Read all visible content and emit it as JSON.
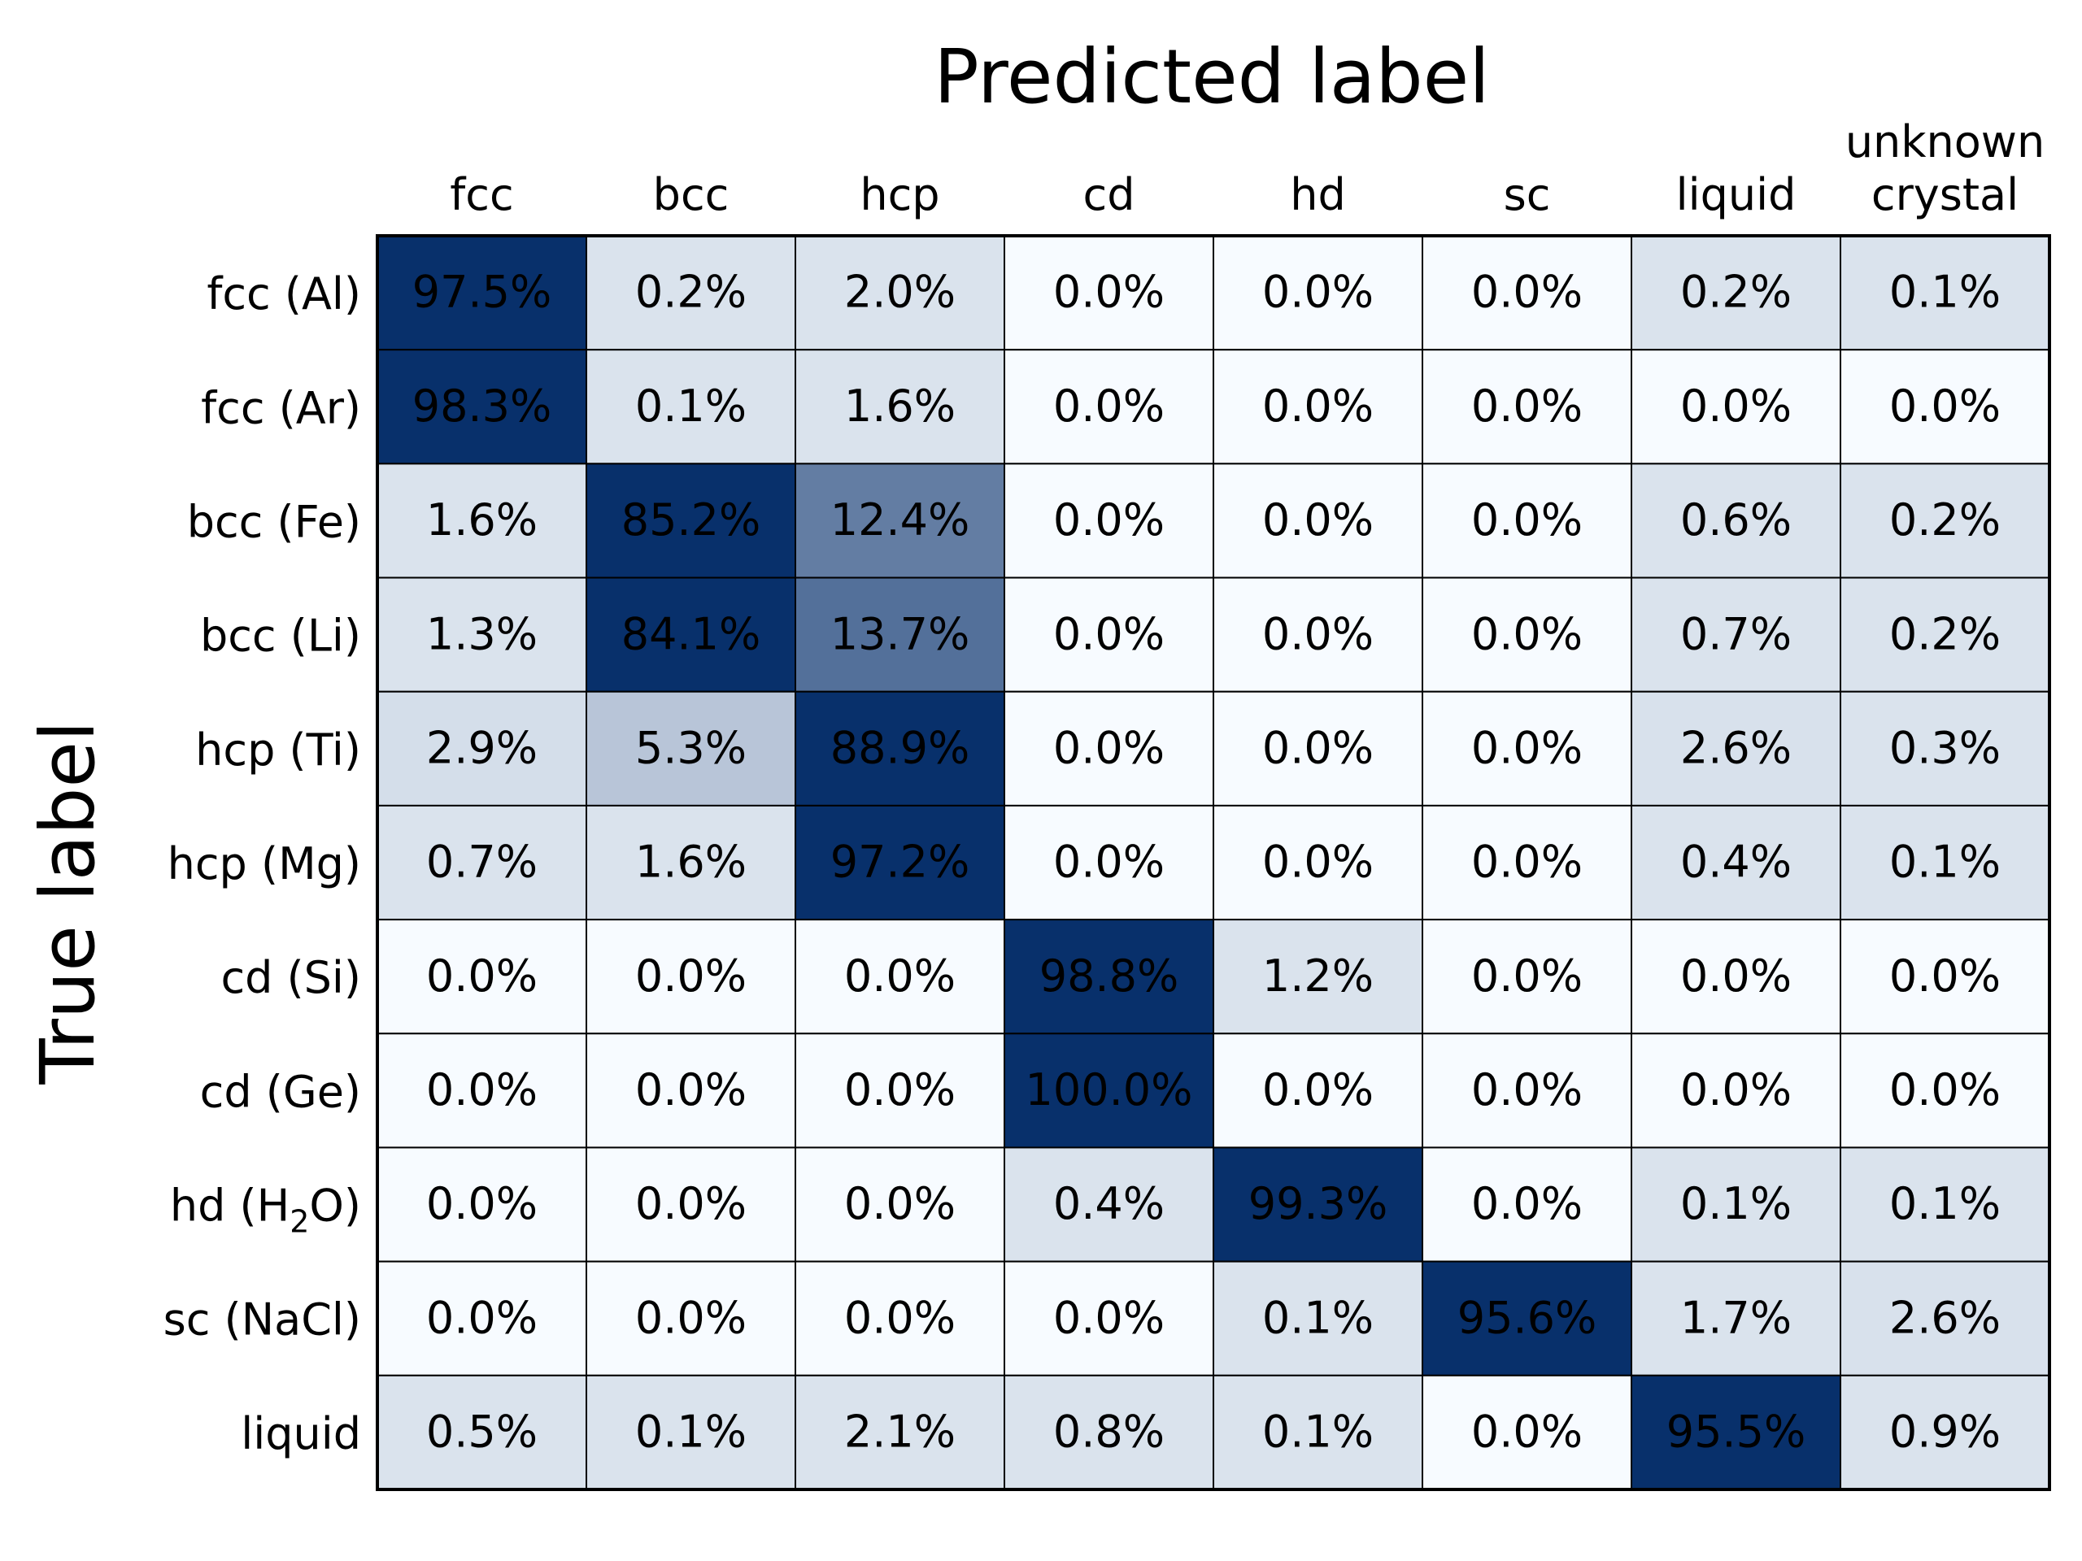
{
  "chart_data": {
    "type": "heatmap",
    "title": "Predicted label",
    "xlabel": "Predicted label",
    "ylabel": "True label",
    "x_position": "top",
    "colormap": "Blues",
    "cmap_low": "#f7fbff",
    "cmap_high": "#08306b",
    "value_range": [
      0,
      20
    ],
    "columns": [
      {
        "line1": "",
        "line2": "fcc"
      },
      {
        "line1": "",
        "line2": "bcc"
      },
      {
        "line1": "",
        "line2": "hcp"
      },
      {
        "line1": "",
        "line2": "cd"
      },
      {
        "line1": "",
        "line2": "hd"
      },
      {
        "line1": "",
        "line2": "sc"
      },
      {
        "line1": "",
        "line2": "liquid"
      },
      {
        "line1": "unknown",
        "line2": "crystal"
      }
    ],
    "rows": [
      {
        "main": "fcc (Al)",
        "sub": "",
        "rest": ""
      },
      {
        "main": "fcc (Ar)",
        "sub": "",
        "rest": ""
      },
      {
        "main": "bcc (Fe)",
        "sub": "",
        "rest": ""
      },
      {
        "main": "bcc (Li)",
        "sub": "",
        "rest": ""
      },
      {
        "main": "hcp (Ti)",
        "sub": "",
        "rest": ""
      },
      {
        "main": "hcp (Mg)",
        "sub": "",
        "rest": ""
      },
      {
        "main": "cd (Si)",
        "sub": "",
        "rest": ""
      },
      {
        "main": "cd (Ge)",
        "sub": "",
        "rest": ""
      },
      {
        "main": "hd (H",
        "sub": "2",
        "rest": "O)"
      },
      {
        "main": "sc (NaCl)",
        "sub": "",
        "rest": ""
      },
      {
        "main": "liquid",
        "sub": "",
        "rest": ""
      }
    ],
    "values": [
      [
        97.5,
        0.2,
        2.0,
        0.0,
        0.0,
        0.0,
        0.2,
        0.1
      ],
      [
        98.3,
        0.1,
        1.6,
        0.0,
        0.0,
        0.0,
        0.0,
        0.0
      ],
      [
        1.6,
        85.2,
        12.4,
        0.0,
        0.0,
        0.0,
        0.6,
        0.2
      ],
      [
        1.3,
        84.1,
        13.7,
        0.0,
        0.0,
        0.0,
        0.7,
        0.2
      ],
      [
        2.9,
        5.3,
        88.9,
        0.0,
        0.0,
        0.0,
        2.6,
        0.3
      ],
      [
        0.7,
        1.6,
        97.2,
        0.0,
        0.0,
        0.0,
        0.4,
        0.1
      ],
      [
        0.0,
        0.0,
        0.0,
        98.8,
        1.2,
        0.0,
        0.0,
        0.0
      ],
      [
        0.0,
        0.0,
        0.0,
        100.0,
        0.0,
        0.0,
        0.0,
        0.0
      ],
      [
        0.0,
        0.0,
        0.0,
        0.4,
        99.3,
        0.0,
        0.1,
        0.1
      ],
      [
        0.0,
        0.0,
        0.0,
        0.0,
        0.1,
        95.6,
        1.7,
        2.6
      ],
      [
        0.5,
        0.1,
        2.1,
        0.8,
        0.1,
        0.0,
        95.5,
        0.9
      ]
    ],
    "value_suffix": "%",
    "grid": true
  }
}
